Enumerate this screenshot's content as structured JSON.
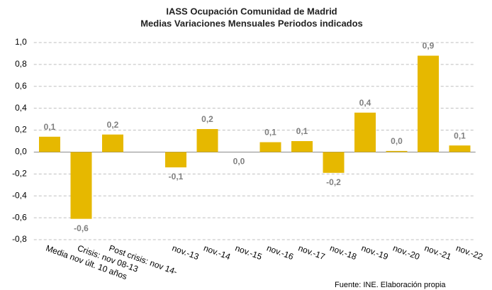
{
  "chart_data": {
    "type": "bar",
    "title": "IASS Ocupación Comunidad de Madrid",
    "subtitle": "Medias Variaciones Mensuales  Periodos indicados",
    "categories": [
      "Media nov últ. 10 años",
      "Crisis: nov 08-13",
      "Post crisis: nov 14-",
      null,
      "nov.-13",
      "nov.-14",
      "nov.-15",
      "nov.-16",
      "nov.-17",
      "nov.-18",
      "nov.-19",
      "nov.-20",
      "nov.-21",
      "nov.-22"
    ],
    "values": [
      0.14,
      -0.61,
      0.16,
      null,
      -0.14,
      0.21,
      0.0,
      0.09,
      0.1,
      -0.19,
      0.36,
      0.01,
      0.88,
      0.06
    ],
    "value_labels": [
      "0,1",
      "-0,6",
      "0,2",
      null,
      "-0,1",
      "0,2",
      "0,0",
      "0,1",
      "0,1",
      "-0,2",
      "0,4",
      "0,0",
      "0,9",
      "0,1"
    ],
    "color": "#e6b800",
    "ylim": [
      -0.8,
      1.0
    ],
    "yticks": [
      {
        "value": -0.8,
        "label": "-0,8"
      },
      {
        "value": -0.6,
        "label": "-0,6"
      },
      {
        "value": -0.4,
        "label": "-0,4"
      },
      {
        "value": -0.2,
        "label": "-0,2"
      },
      {
        "value": 0,
        "label": "0,0"
      },
      {
        "value": 0.2,
        "label": "0,2"
      },
      {
        "value": 0.4,
        "label": "0,4"
      },
      {
        "value": 0.6,
        "label": "0,6"
      },
      {
        "value": 0.8,
        "label": "0,8"
      },
      {
        "value": 1.0,
        "label": "1,0"
      }
    ],
    "grid": true,
    "source": "Fuente: INE. Elaboración propia"
  }
}
